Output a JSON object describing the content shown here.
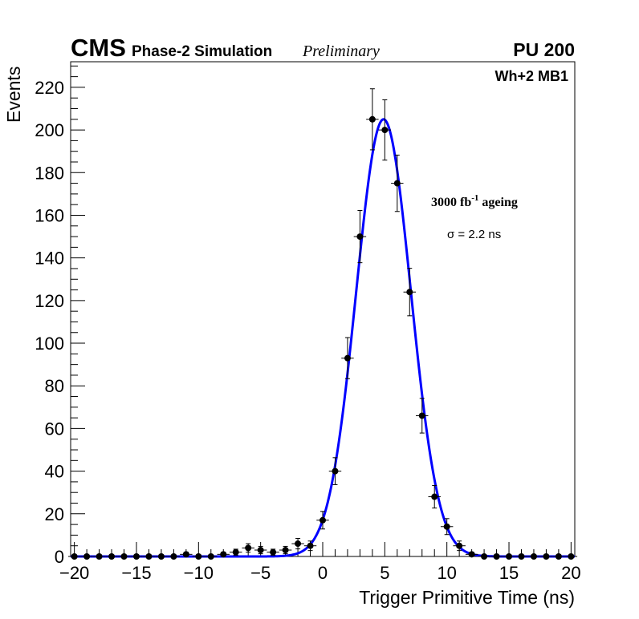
{
  "header": {
    "experiment": "CMS",
    "subtitle": "Phase-2 Simulation",
    "status": "Preliminary",
    "pileup": "PU 200"
  },
  "chart_data": {
    "type": "scatter",
    "title": "",
    "xlabel": "Trigger Primitive Time (ns)",
    "ylabel": "Events",
    "xlim": [
      -20.3,
      20.3
    ],
    "ylim": [
      0,
      232
    ],
    "xticks": [
      -20,
      -15,
      -10,
      -5,
      0,
      5,
      10,
      15,
      20
    ],
    "xtick_labels": [
      "−20",
      "−15",
      "−10",
      "−5",
      "0",
      "5",
      "10",
      "15",
      "20"
    ],
    "yticks": [
      0,
      20,
      40,
      60,
      80,
      100,
      120,
      140,
      160,
      180,
      200,
      220
    ],
    "ytick_labels": [
      "0",
      "20",
      "40",
      "60",
      "80",
      "100",
      "120",
      "140",
      "160",
      "180",
      "200",
      "220"
    ],
    "grid": false,
    "legend": "none",
    "annotations": {
      "station": "Wh+2 MB1",
      "ageing_main": "3000 fb",
      "ageing_sup": "-1",
      "ageing_rest": " ageing",
      "sigma": "σ = 2.2 ns"
    },
    "series": [
      {
        "color": "#000000",
        "marker": "circle",
        "x_halfwidth": 0.5,
        "x": [
          -20,
          -19,
          -18,
          -17,
          -16,
          -15,
          -14,
          -13,
          -12,
          -11,
          -10,
          -9,
          -8,
          -7,
          -6,
          -5,
          -4,
          -3,
          -2,
          -1,
          0,
          1,
          2,
          3,
          4,
          5,
          6,
          7,
          8,
          9,
          10,
          11,
          12,
          13,
          14,
          15,
          16,
          17,
          18,
          19,
          20
        ],
        "y": [
          0,
          0,
          0,
          0,
          0,
          0,
          0,
          0,
          0,
          1,
          0,
          0,
          1,
          2,
          4,
          3,
          2,
          3,
          6,
          5,
          17,
          40,
          93,
          150,
          205,
          200,
          175,
          124,
          66,
          28,
          14,
          5,
          1,
          0,
          0,
          0,
          0,
          0,
          0,
          0,
          0
        ]
      },
      {
        "type": "line",
        "color": "#0000ff",
        "fit": "gaussian",
        "amplitude": 205,
        "mean": 4.9,
        "sigma": 2.2
      }
    ]
  }
}
